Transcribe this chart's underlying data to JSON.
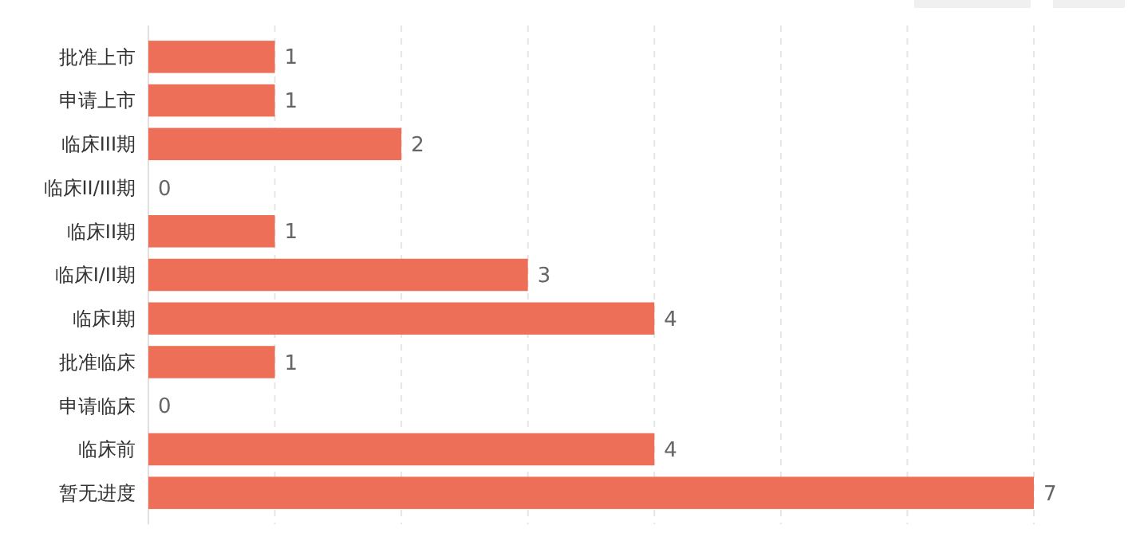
{
  "chart_data": {
    "type": "bar",
    "orientation": "horizontal",
    "categories": [
      "批准上市",
      "申请上市",
      "临床III期",
      "临床II/III期",
      "临床II期",
      "临床I/II期",
      "临床I期",
      "批准临床",
      "申请临床",
      "临床前",
      "暂无进度"
    ],
    "values": [
      1,
      1,
      2,
      0,
      1,
      3,
      4,
      1,
      0,
      4,
      7
    ],
    "color": "#ee6f57",
    "xlim": [
      0,
      7
    ],
    "xticks": [
      {
        "value": 0,
        "label": null
      },
      {
        "value": 1,
        "label": null
      },
      {
        "value": 2,
        "label": null
      },
      {
        "value": 3,
        "label": null
      },
      {
        "value": 4,
        "label": null
      },
      {
        "value": 5,
        "label": null
      },
      {
        "value": 6,
        "label": null
      },
      {
        "value": 7,
        "label": null
      }
    ],
    "grid": "x",
    "tick_labels": "y",
    "data_labels": true
  }
}
